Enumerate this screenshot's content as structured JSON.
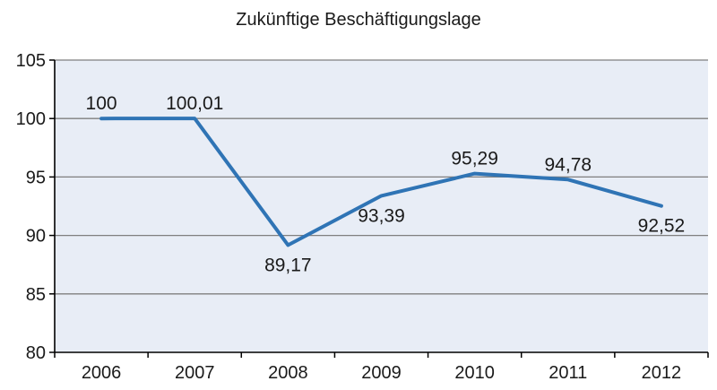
{
  "chart_data": {
    "type": "line",
    "title": "Zukünftige Beschäftigungslage",
    "xlabel": "",
    "ylabel": "",
    "categories": [
      "2006",
      "2007",
      "2008",
      "2009",
      "2010",
      "2011",
      "2012"
    ],
    "series": [
      {
        "values": [
          100,
          100.01,
          89.17,
          93.39,
          95.29,
          94.78,
          92.52
        ],
        "labels": [
          "100",
          "100,01",
          "89,17",
          "93,39",
          "95,29",
          "94,78",
          "92,52"
        ],
        "label_positions": [
          "above",
          "above",
          "below",
          "below",
          "above",
          "above",
          "below"
        ]
      }
    ],
    "ylim": [
      80,
      105
    ],
    "yticks": [
      80,
      85,
      90,
      95,
      100,
      105
    ],
    "grid": true,
    "legend": "none",
    "colors": {
      "line": "#2f74b5",
      "plot_background": "#e8edf6",
      "grid": "#7f7f7f",
      "axis": "#000000"
    }
  }
}
